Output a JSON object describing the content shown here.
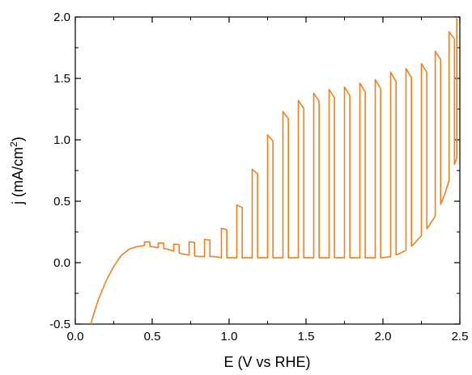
{
  "chart_data": {
    "type": "line",
    "title": "",
    "xlabel": "E (V vs RHE)",
    "ylabel_main": "j (mA/cm",
    "ylabel_sup": "2",
    "ylabel_end": ")",
    "xlim": [
      0.0,
      2.5
    ],
    "ylim": [
      -0.5,
      2.0
    ],
    "grid": false,
    "legend": "none",
    "x_ticks": [
      "0.0",
      "0.5",
      "1.0",
      "1.5",
      "2.0",
      "2.5"
    ],
    "y_ticks": [
      "-0.5",
      "0.0",
      "0.5",
      "1.0",
      "1.5",
      "2.0"
    ],
    "series": [
      {
        "color": "#f07f1c",
        "x": [
          0.1,
          0.15,
          0.2,
          0.25,
          0.3,
          0.35,
          0.4,
          0.45,
          0.5,
          0.55,
          0.6,
          0.65,
          0.7,
          0.75,
          0.8,
          0.85,
          0.9,
          0.95,
          1.0,
          1.05,
          1.1,
          1.15,
          1.2,
          1.25,
          1.3,
          1.35,
          1.4,
          1.45,
          1.5,
          1.55,
          1.6,
          1.65,
          1.7,
          1.75,
          1.8,
          1.85,
          1.9,
          1.95,
          2.0,
          2.05,
          2.1,
          2.15,
          2.2,
          2.25,
          2.3,
          2.35,
          2.4,
          2.45,
          2.48
        ],
        "y": [
          -0.5,
          -0.3,
          -0.15,
          -0.03,
          0.06,
          0.11,
          0.13,
          0.14,
          0.13,
          0.12,
          0.11,
          0.09,
          0.07,
          0.06,
          0.05,
          0.05,
          0.05,
          0.04,
          0.04,
          0.04,
          0.04,
          0.04,
          0.04,
          0.04,
          0.04,
          0.04,
          0.04,
          0.04,
          0.04,
          0.04,
          0.04,
          0.04,
          0.04,
          0.04,
          0.04,
          0.04,
          0.04,
          0.04,
          0.04,
          0.05,
          0.07,
          0.1,
          0.15,
          0.22,
          0.3,
          0.4,
          0.55,
          0.75,
          0.85
        ]
      }
    ],
    "light_pulses": [
      {
        "x": 0.45,
        "top": 0.17
      },
      {
        "x": 0.54,
        "top": 0.16
      },
      {
        "x": 0.64,
        "top": 0.15
      },
      {
        "x": 0.74,
        "top": 0.17
      },
      {
        "x": 0.84,
        "top": 0.19
      },
      {
        "x": 0.95,
        "top": 0.28
      },
      {
        "x": 1.05,
        "top": 0.47
      },
      {
        "x": 1.15,
        "top": 0.76
      },
      {
        "x": 1.25,
        "top": 1.04
      },
      {
        "x": 1.35,
        "top": 1.23
      },
      {
        "x": 1.45,
        "top": 1.32
      },
      {
        "x": 1.55,
        "top": 1.38
      },
      {
        "x": 1.65,
        "top": 1.41
      },
      {
        "x": 1.75,
        "top": 1.43
      },
      {
        "x": 1.85,
        "top": 1.46
      },
      {
        "x": 1.95,
        "top": 1.49
      },
      {
        "x": 2.05,
        "top": 1.55
      },
      {
        "x": 2.15,
        "top": 1.58
      },
      {
        "x": 2.25,
        "top": 1.62
      },
      {
        "x": 2.34,
        "top": 1.72
      },
      {
        "x": 2.43,
        "top": 1.88
      }
    ],
    "pulse_width": 0.035,
    "final_rise": {
      "x": 2.48,
      "top": 2.0
    }
  }
}
